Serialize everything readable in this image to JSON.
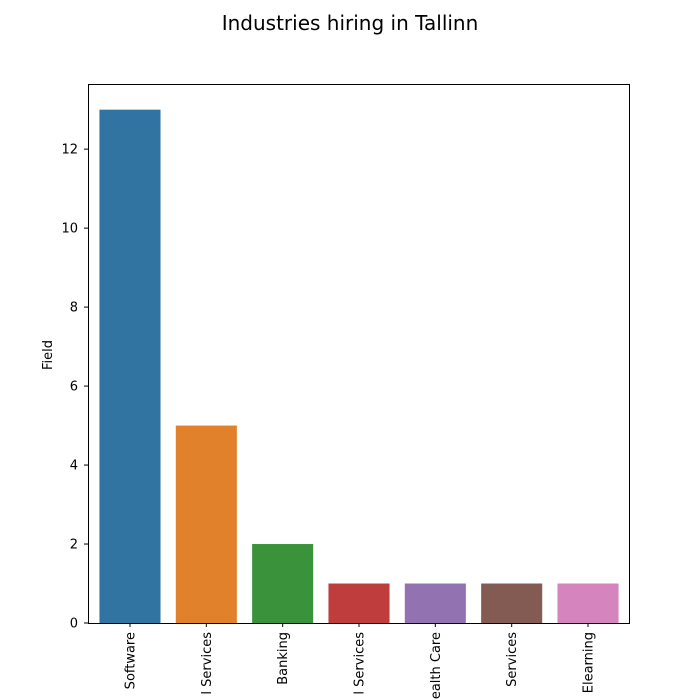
{
  "chart_data": {
    "type": "bar",
    "title": "Industries hiring in Tallinn",
    "xlabel": "",
    "ylabel": "Field",
    "categories": [
      "Software",
      "l Services",
      "Banking",
      "l Services",
      "ealth Care",
      "Services",
      "Elearning"
    ],
    "values": [
      13,
      5,
      2,
      1,
      1,
      1,
      1
    ],
    "colors": [
      "#3274a1",
      "#e1812c",
      "#3a923a",
      "#c03d3e",
      "#9372b2",
      "#845b53",
      "#d684bd"
    ],
    "ylim": [
      0,
      13.65
    ],
    "yticks": [
      0,
      2,
      4,
      6,
      8,
      10,
      12
    ],
    "grid": false,
    "legend": "none"
  }
}
